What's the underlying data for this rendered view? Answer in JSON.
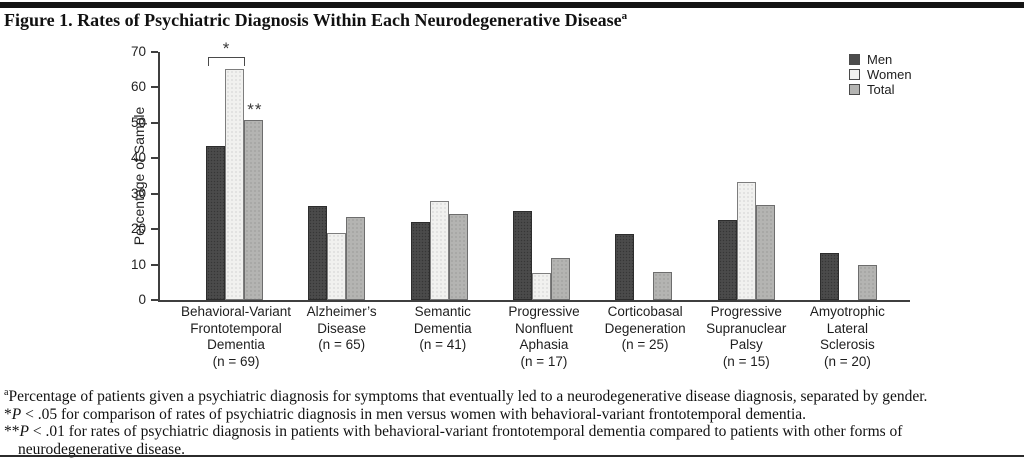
{
  "title": {
    "label": "Figure 1. Rates of Psychiatric Diagnosis Within Each Neurodegenerative Disease",
    "superscript": "a"
  },
  "chart_data": {
    "type": "bar",
    "title": "Figure 1. Rates of Psychiatric Diagnosis Within Each Neurodegenerative Disease",
    "xlabel": "",
    "ylabel": "Percentage of Sample",
    "ylim": [
      0,
      70
    ],
    "yticks": [
      0,
      10,
      20,
      30,
      40,
      50,
      60,
      70
    ],
    "grid": false,
    "legend_position": "top-right",
    "series": [
      {
        "key": "men",
        "label": "Men",
        "color": "#4b4b4b"
      },
      {
        "key": "women",
        "label": "Women",
        "color": "#f1f1ef"
      },
      {
        "key": "total",
        "label": "Total",
        "color": "#b4b4b2"
      }
    ],
    "categories": [
      {
        "label_lines": [
          "Behavioral-Variant",
          "Frontotemporal",
          "Dementia",
          "(n = 69)"
        ],
        "men": 43.5,
        "women": 65.2,
        "total": 50.7
      },
      {
        "label_lines": [
          "Alzheimer’s",
          "Disease",
          "(n = 65)"
        ],
        "men": 26.5,
        "women": 19.0,
        "total": 23.4
      },
      {
        "label_lines": [
          "Semantic",
          "Dementia",
          "(n = 41)"
        ],
        "men": 22.0,
        "women": 28.0,
        "total": 24.4
      },
      {
        "label_lines": [
          "Progressive",
          "Nonfluent",
          "Aphasia",
          "(n = 17)"
        ],
        "men": 25.0,
        "women": 7.7,
        "total": 11.8
      },
      {
        "label_lines": [
          "Corticobasal",
          "Degeneration",
          "(n = 25)"
        ],
        "men": 18.5,
        "women": 0,
        "total": 8.0
      },
      {
        "label_lines": [
          "Progressive",
          "Supranuclear",
          "Palsy",
          "(n = 15)"
        ],
        "men": 22.5,
        "women": 33.3,
        "total": 26.7
      },
      {
        "label_lines": [
          "Amyotrophic",
          "Lateral",
          "Sclerosis",
          "(n = 20)"
        ],
        "men": 13.3,
        "women": 0,
        "total": 10.0
      }
    ],
    "annotations": {
      "bracket_star": "*",
      "bracket_category": 0,
      "bracket_series": [
        "men",
        "women"
      ],
      "double_star": "**",
      "double_star_category": 0,
      "double_star_series": "total"
    }
  },
  "footnotes": [
    {
      "segments": [
        {
          "style": "sup",
          "text": "a"
        },
        {
          "style": "plain",
          "text": "Percentage of patients given a psychiatric diagnosis for symptoms that eventually led to a neurodegenerative disease diagnosis, separated by gender."
        }
      ]
    },
    {
      "segments": [
        {
          "style": "plain",
          "text": "*"
        },
        {
          "style": "italic",
          "text": "P"
        },
        {
          "style": "plain",
          "text": " < .05 for comparison of rates of psychiatric diagnosis in men versus women with behavioral-variant frontotemporal dementia."
        }
      ]
    },
    {
      "segments": [
        {
          "style": "plain",
          "text": "**"
        },
        {
          "style": "italic",
          "text": "P"
        },
        {
          "style": "plain",
          "text": " < .01 for rates of psychiatric diagnosis in patients with behavioral-variant frontotemporal dementia compared to patients with other forms of"
        },
        {
          "style": "break",
          "text": ""
        },
        {
          "style": "plain",
          "text": "neurodegenerative disease."
        }
      ]
    }
  ]
}
